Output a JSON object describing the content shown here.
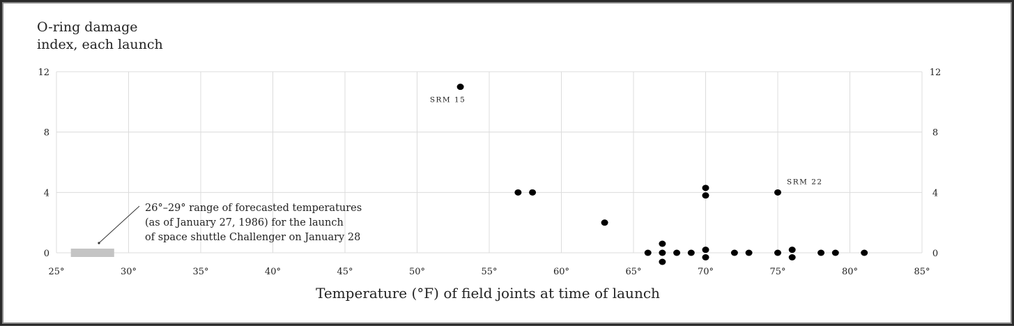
{
  "chart_data": {
    "type": "scatter",
    "ylabel_lines": [
      "O-ring damage",
      "index, each launch"
    ],
    "xlabel": "Temperature (°F) of field joints at time of launch",
    "x_ticks": [
      "25°",
      "30°",
      "35°",
      "40°",
      "45°",
      "50°",
      "55°",
      "60°",
      "65°",
      "70°",
      "75°",
      "80°",
      "85°"
    ],
    "x_tick_values": [
      25,
      30,
      35,
      40,
      45,
      50,
      55,
      60,
      65,
      70,
      75,
      80,
      85
    ],
    "y_ticks": [
      "0",
      "4",
      "8",
      "12"
    ],
    "y_tick_values": [
      0,
      4,
      8,
      12
    ],
    "xlim": [
      25,
      85
    ],
    "ylim": [
      0,
      12
    ],
    "grid": true,
    "right_axis_labels": true,
    "points": [
      {
        "x": 53,
        "y": 11
      },
      {
        "x": 57,
        "y": 4
      },
      {
        "x": 58,
        "y": 4
      },
      {
        "x": 63,
        "y": 2
      },
      {
        "x": 66,
        "y": 0
      },
      {
        "x": 67,
        "y": 0.6
      },
      {
        "x": 67,
        "y": 0
      },
      {
        "x": 67,
        "y": -0.6
      },
      {
        "x": 68,
        "y": 0
      },
      {
        "x": 69,
        "y": 0
      },
      {
        "x": 70,
        "y": 4.3
      },
      {
        "x": 70,
        "y": 3.8
      },
      {
        "x": 70,
        "y": 0.2
      },
      {
        "x": 70,
        "y": -0.3
      },
      {
        "x": 72,
        "y": 0
      },
      {
        "x": 73,
        "y": 0
      },
      {
        "x": 75,
        "y": 4
      },
      {
        "x": 75,
        "y": 0
      },
      {
        "x": 76,
        "y": 0.2
      },
      {
        "x": 76,
        "y": -0.3
      },
      {
        "x": 78,
        "y": 0
      },
      {
        "x": 79,
        "y": 0
      },
      {
        "x": 81,
        "y": 0
      }
    ],
    "annotations": [
      {
        "text": "SRM 15",
        "x": 53,
        "y": 11
      },
      {
        "text": "SRM 22",
        "x": 75,
        "y": 4
      }
    ],
    "forecast_range": {
      "x_range": [
        26,
        29
      ],
      "color": "#c4c4c4",
      "text_lines": [
        "26°–29° range of forecasted temperatures",
        "(as of January 27, 1986) for the launch",
        "of space shuttle Challenger on January 28"
      ]
    }
  }
}
